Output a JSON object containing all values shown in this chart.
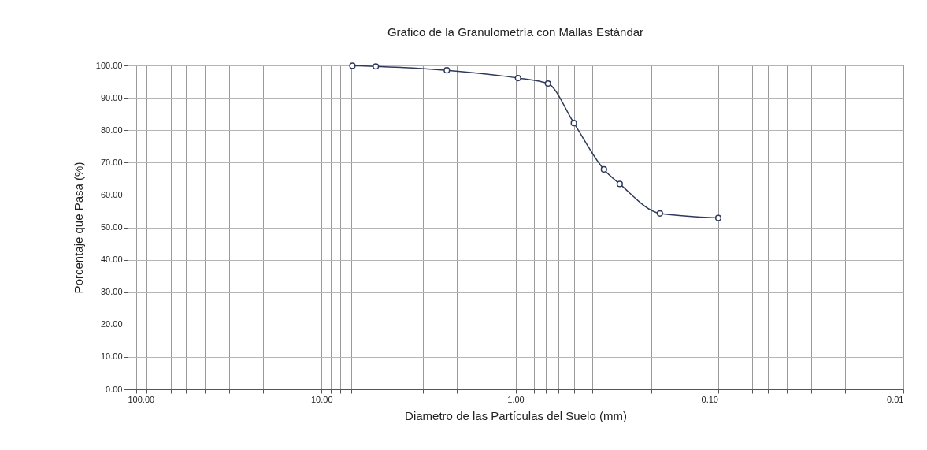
{
  "chart_data": {
    "type": "line",
    "title": "Grafico de la Granulometría con Mallas Estándar",
    "xlabel": "Diametro de las Partículas del Suelo (mm)",
    "ylabel": "Porcentaje que Pasa (%)",
    "x": [
      6.93,
      5.25,
      2.26,
      0.97,
      0.68,
      0.5,
      0.35,
      0.29,
      0.18,
      0.09
    ],
    "series": [
      {
        "color": "#2e3a5c",
        "values": [
          99.9,
          99.7,
          98.5,
          96.1,
          94.4,
          82.2,
          67.9,
          63.4,
          54.3,
          52.9
        ]
      }
    ],
    "log": "x",
    "xlim": [
      100,
      0.01
    ],
    "xticks": [
      {
        "value": 100,
        "label": "100.00"
      },
      {
        "value": 90,
        "label": null
      },
      {
        "value": 80,
        "label": null
      },
      {
        "value": 70,
        "label": null
      },
      {
        "value": 60,
        "label": null
      },
      {
        "value": 50,
        "label": null
      },
      {
        "value": 40,
        "label": null
      },
      {
        "value": 30,
        "label": null
      },
      {
        "value": 20,
        "label": null
      },
      {
        "value": 10,
        "label": "10.00"
      },
      {
        "value": 9,
        "label": null
      },
      {
        "value": 8,
        "label": null
      },
      {
        "value": 7,
        "label": null
      },
      {
        "value": 6,
        "label": null
      },
      {
        "value": 5,
        "label": null
      },
      {
        "value": 4,
        "label": null
      },
      {
        "value": 3,
        "label": null
      },
      {
        "value": 2,
        "label": null
      },
      {
        "value": 1,
        "label": "1.00"
      },
      {
        "value": 0.9,
        "label": null
      },
      {
        "value": 0.8,
        "label": null
      },
      {
        "value": 0.7,
        "label": null
      },
      {
        "value": 0.6,
        "label": null
      },
      {
        "value": 0.5,
        "label": null
      },
      {
        "value": 0.4,
        "label": null
      },
      {
        "value": 0.3,
        "label": null
      },
      {
        "value": 0.2,
        "label": null
      },
      {
        "value": 0.1,
        "label": "0.10"
      },
      {
        "value": 0.09,
        "label": null
      },
      {
        "value": 0.08,
        "label": null
      },
      {
        "value": 0.07,
        "label": null
      },
      {
        "value": 0.06,
        "label": null
      },
      {
        "value": 0.05,
        "label": null
      },
      {
        "value": 0.04,
        "label": null
      },
      {
        "value": 0.03,
        "label": null
      },
      {
        "value": 0.02,
        "label": null
      },
      {
        "value": 0.01,
        "label": "0.01"
      }
    ],
    "ylim": [
      0,
      100
    ],
    "yticks": [
      {
        "value": 0,
        "label": "0.00"
      },
      {
        "value": 10,
        "label": "10.00"
      },
      {
        "value": 20,
        "label": "20.00"
      },
      {
        "value": 30,
        "label": "30.00"
      },
      {
        "value": 40,
        "label": "40.00"
      },
      {
        "value": 50,
        "label": "50.00"
      },
      {
        "value": 60,
        "label": "60.00"
      },
      {
        "value": 70,
        "label": "70.00"
      },
      {
        "value": 80,
        "label": "80.00"
      },
      {
        "value": 90,
        "label": "90.00"
      },
      {
        "value": 100,
        "label": "100.00"
      }
    ],
    "grid": true,
    "marker": "circle",
    "line_style": "solid"
  }
}
